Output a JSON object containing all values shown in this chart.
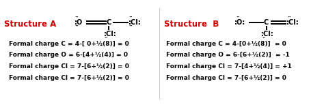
{
  "bg_color": "#ffffff",
  "structure_a_label": "Structure A",
  "structure_b_label": "Structure  B",
  "label_color": "#cc0000",
  "text_color": "#000000",
  "formal_charges_a": [
    "Formal charge C = 4-[ 0+½(8)] = 0",
    "Formal charge O = 6-[4+½(4)] = 0",
    "Formal charge Cl = 7-[6+½(2)] = 0",
    "Formal charge Cl = 7-[6+½(2)] = 0"
  ],
  "formal_charges_b": [
    "Formal charge C = 4-[0+½(8)]  = 0",
    "Formal charge O = 6-[6+½(2)]  = -1",
    "Formal charge Cl = 7-[4+½(4)] = +1",
    "Formal charge Cl = 7-[6+½(2)] = 0"
  ],
  "fontsize_formula": 6.5,
  "fontsize_label": 8.5,
  "fontsize_struct": 7.0,
  "fontsize_dots": 5.5
}
